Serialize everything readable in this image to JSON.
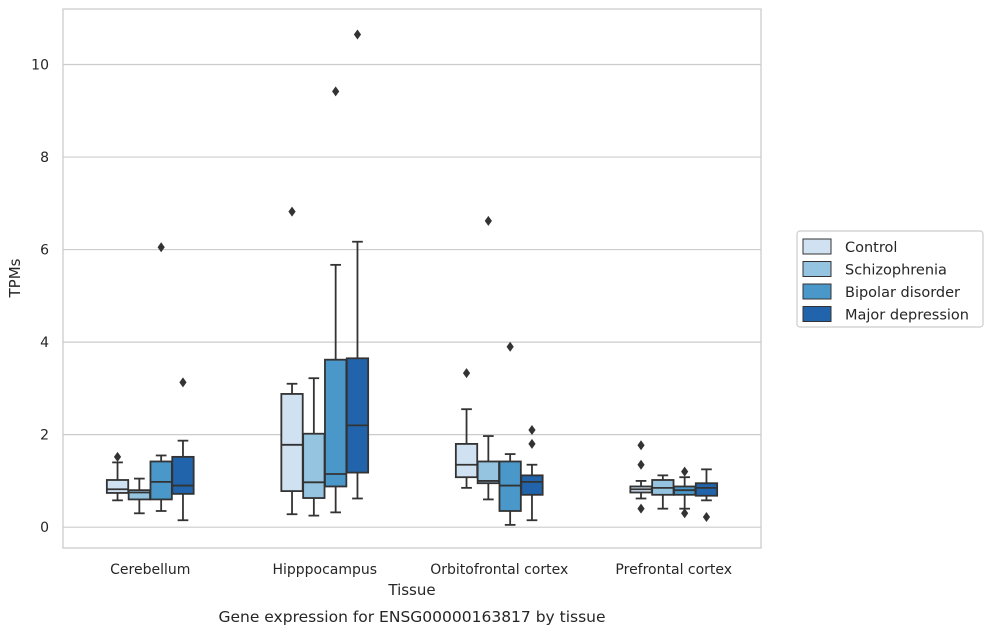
{
  "chart_data": {
    "type": "box",
    "title": "",
    "caption": "Gene expression for ENSG00000163817 by tissue",
    "xlabel": "Tissue",
    "ylabel": "TPMs",
    "categories": [
      "Cerebellum",
      "Hipppocampus",
      "Orbitofrontal cortex",
      "Prefrontal cortex"
    ],
    "ylim": [
      -0.45,
      11.2
    ],
    "yticks": [
      0,
      2,
      4,
      6,
      8,
      10
    ],
    "grid": "horizontal",
    "legend_position": "right",
    "series": [
      {
        "name": "Control",
        "color": "#d0e1f2",
        "boxes": [
          {
            "whislo": 0.58,
            "q1": 0.74,
            "med": 0.82,
            "q3": 1.02,
            "whishi": 1.4,
            "fliers": [
              1.52
            ]
          },
          {
            "whislo": 0.28,
            "q1": 0.78,
            "med": 1.78,
            "q3": 2.88,
            "whishi": 3.1,
            "fliers": [
              6.82
            ]
          },
          {
            "whislo": 0.85,
            "q1": 1.08,
            "med": 1.35,
            "q3": 1.8,
            "whishi": 2.55,
            "fliers": [
              3.33
            ]
          },
          {
            "whislo": 0.62,
            "q1": 0.75,
            "med": 0.82,
            "q3": 0.88,
            "whishi": 1.0,
            "fliers": [
              0.4,
              1.35,
              1.77
            ]
          }
        ]
      },
      {
        "name": "Schizophrenia",
        "color": "#94c4df",
        "boxes": [
          {
            "whislo": 0.3,
            "q1": 0.6,
            "med": 0.75,
            "q3": 0.8,
            "whishi": 1.05,
            "fliers": []
          },
          {
            "whislo": 0.25,
            "q1": 0.63,
            "med": 0.97,
            "q3": 2.02,
            "whishi": 3.22,
            "fliers": []
          },
          {
            "whislo": 0.6,
            "q1": 0.95,
            "med": 1.0,
            "q3": 1.42,
            "whishi": 1.97,
            "fliers": [
              6.62
            ]
          },
          {
            "whislo": 0.4,
            "q1": 0.7,
            "med": 0.85,
            "q3": 1.02,
            "whishi": 1.12,
            "fliers": []
          }
        ]
      },
      {
        "name": "Bipolar disorder",
        "color": "#4a98c9",
        "boxes": [
          {
            "whislo": 0.35,
            "q1": 0.6,
            "med": 0.98,
            "q3": 1.42,
            "whishi": 1.55,
            "fliers": [
              6.05
            ]
          },
          {
            "whislo": 0.32,
            "q1": 0.88,
            "med": 1.15,
            "q3": 3.62,
            "whishi": 5.67,
            "fliers": [
              9.42
            ]
          },
          {
            "whislo": 0.05,
            "q1": 0.35,
            "med": 0.9,
            "q3": 1.42,
            "whishi": 1.58,
            "fliers": [
              3.9
            ]
          },
          {
            "whislo": 0.4,
            "q1": 0.7,
            "med": 0.8,
            "q3": 0.88,
            "whishi": 1.08,
            "fliers": [
              0.3,
              1.2
            ]
          }
        ]
      },
      {
        "name": "Major depression",
        "color": "#2164ab",
        "boxes": [
          {
            "whislo": 0.15,
            "q1": 0.72,
            "med": 0.9,
            "q3": 1.52,
            "whishi": 1.87,
            "fliers": [
              3.13
            ]
          },
          {
            "whislo": 0.62,
            "q1": 1.18,
            "med": 2.2,
            "q3": 3.65,
            "whishi": 6.17,
            "fliers": [
              10.65
            ]
          },
          {
            "whislo": 0.15,
            "q1": 0.7,
            "med": 0.98,
            "q3": 1.12,
            "whishi": 1.35,
            "fliers": [
              1.8,
              2.1
            ]
          },
          {
            "whislo": 0.58,
            "q1": 0.68,
            "med": 0.85,
            "q3": 0.95,
            "whishi": 1.25,
            "fliers": [
              0.22
            ]
          }
        ]
      }
    ]
  }
}
